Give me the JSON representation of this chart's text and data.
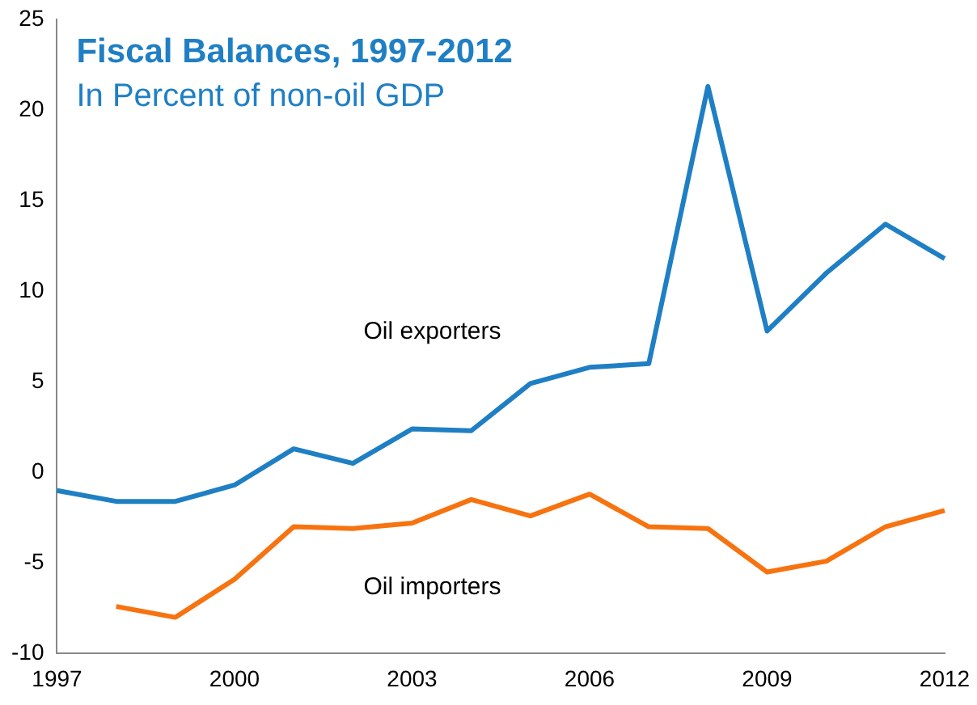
{
  "chart_data": {
    "type": "line",
    "title": "Fiscal Balances, 1997-2012",
    "subtitle": "In Percent of non-oil GDP",
    "categories": [
      "1997",
      null,
      null,
      "2000",
      null,
      null,
      "2003",
      null,
      null,
      "2006",
      null,
      null,
      "2009",
      null,
      null,
      "2012"
    ],
    "series": [
      {
        "name": "Oil exporters",
        "color": "#1f7fc4",
        "values": [
          -1.0,
          -1.6,
          -1.6,
          -0.7,
          1.3,
          0.5,
          2.4,
          2.3,
          4.9,
          5.8,
          6.0,
          21.3,
          7.8,
          11.0,
          13.7,
          11.8
        ]
      },
      {
        "name": "Oil importers",
        "color": "#f7730f",
        "values": [
          null,
          -7.4,
          -8.0,
          -5.9,
          -3.0,
          -3.1,
          -2.8,
          -1.5,
          -2.4,
          -1.2,
          -3.0,
          -3.1,
          -5.5,
          -4.9,
          -3.0,
          -2.1
        ]
      }
    ],
    "ylim": [
      -10,
      25
    ],
    "yticks": [
      -10,
      -5,
      0,
      5,
      10,
      15,
      20,
      25
    ],
    "grid": false,
    "legend": false,
    "marker": "none",
    "line_style": "solid"
  }
}
